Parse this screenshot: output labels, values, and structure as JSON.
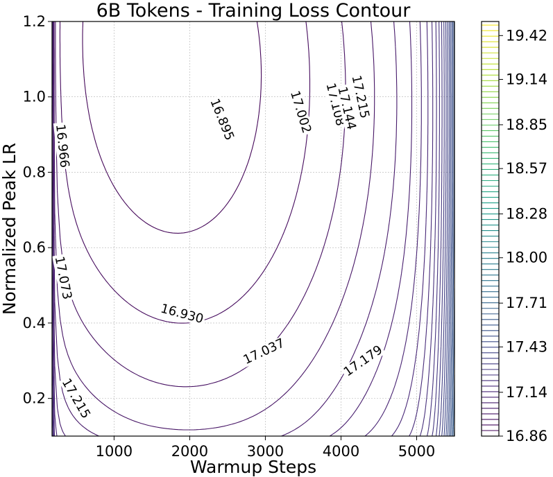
{
  "chart_data": {
    "type": "contour",
    "title": "6B Tokens - Training Loss Contour",
    "xlabel": "Warmup Steps",
    "ylabel": "Normalized Peak LR",
    "xlim": [
      180,
      5500
    ],
    "ylim": [
      0.1,
      1.2
    ],
    "x_ticks": [
      1000,
      2000,
      3000,
      4000,
      5000
    ],
    "x_tick_labels": [
      "1000",
      "2000",
      "3000",
      "4000",
      "5000"
    ],
    "y_ticks": [
      0.2,
      0.4,
      0.6,
      0.8,
      1.0,
      1.2
    ],
    "y_tick_labels": [
      "0.2",
      "0.4",
      "0.6",
      "0.8",
      "1.0",
      "1.2"
    ],
    "grid": true,
    "colormap": "viridis",
    "level_min": 16.86,
    "level_max": 19.51,
    "level_step": 0.0355,
    "colorbar_ticks": [
      16.86,
      17.14,
      17.43,
      17.71,
      18.0,
      18.28,
      18.57,
      18.85,
      19.14,
      19.42
    ],
    "colorbar_tick_labels": [
      "16.86",
      "17.14",
      "17.43",
      "17.71",
      "18.00",
      "18.28",
      "18.57",
      "18.85",
      "19.14",
      "19.42"
    ],
    "contour_labels": [
      {
        "text": "16.895",
        "x": 2430,
        "y": 0.94,
        "rotation": 68
      },
      {
        "text": "16.930",
        "x": 1900,
        "y": 0.425,
        "rotation": 15
      },
      {
        "text": "16.966",
        "x": 320,
        "y": 0.87,
        "rotation": 84
      },
      {
        "text": "17.002",
        "x": 3470,
        "y": 0.96,
        "rotation": 73
      },
      {
        "text": "17.037",
        "x": 2980,
        "y": 0.325,
        "rotation": -25
      },
      {
        "text": "17.073",
        "x": 330,
        "y": 0.52,
        "rotation": 79
      },
      {
        "text": "17.108",
        "x": 3930,
        "y": 0.98,
        "rotation": 76
      },
      {
        "text": "17.144",
        "x": 4080,
        "y": 0.97,
        "rotation": 77
      },
      {
        "text": "17.179",
        "x": 4290,
        "y": 0.3,
        "rotation": -35
      },
      {
        "text": "17.215",
        "x": 4260,
        "y": 1.0,
        "rotation": 78
      },
      {
        "text": "17.215",
        "x": 500,
        "y": 0.2,
        "rotation": 60
      }
    ]
  },
  "colors": {
    "viridis": [
      "#440154",
      "#482878",
      "#3e4989",
      "#31688e",
      "#26828e",
      "#1f9e89",
      "#35b779",
      "#6ece58",
      "#b5de2b",
      "#fde725"
    ],
    "grid": "#b0b0b0"
  }
}
